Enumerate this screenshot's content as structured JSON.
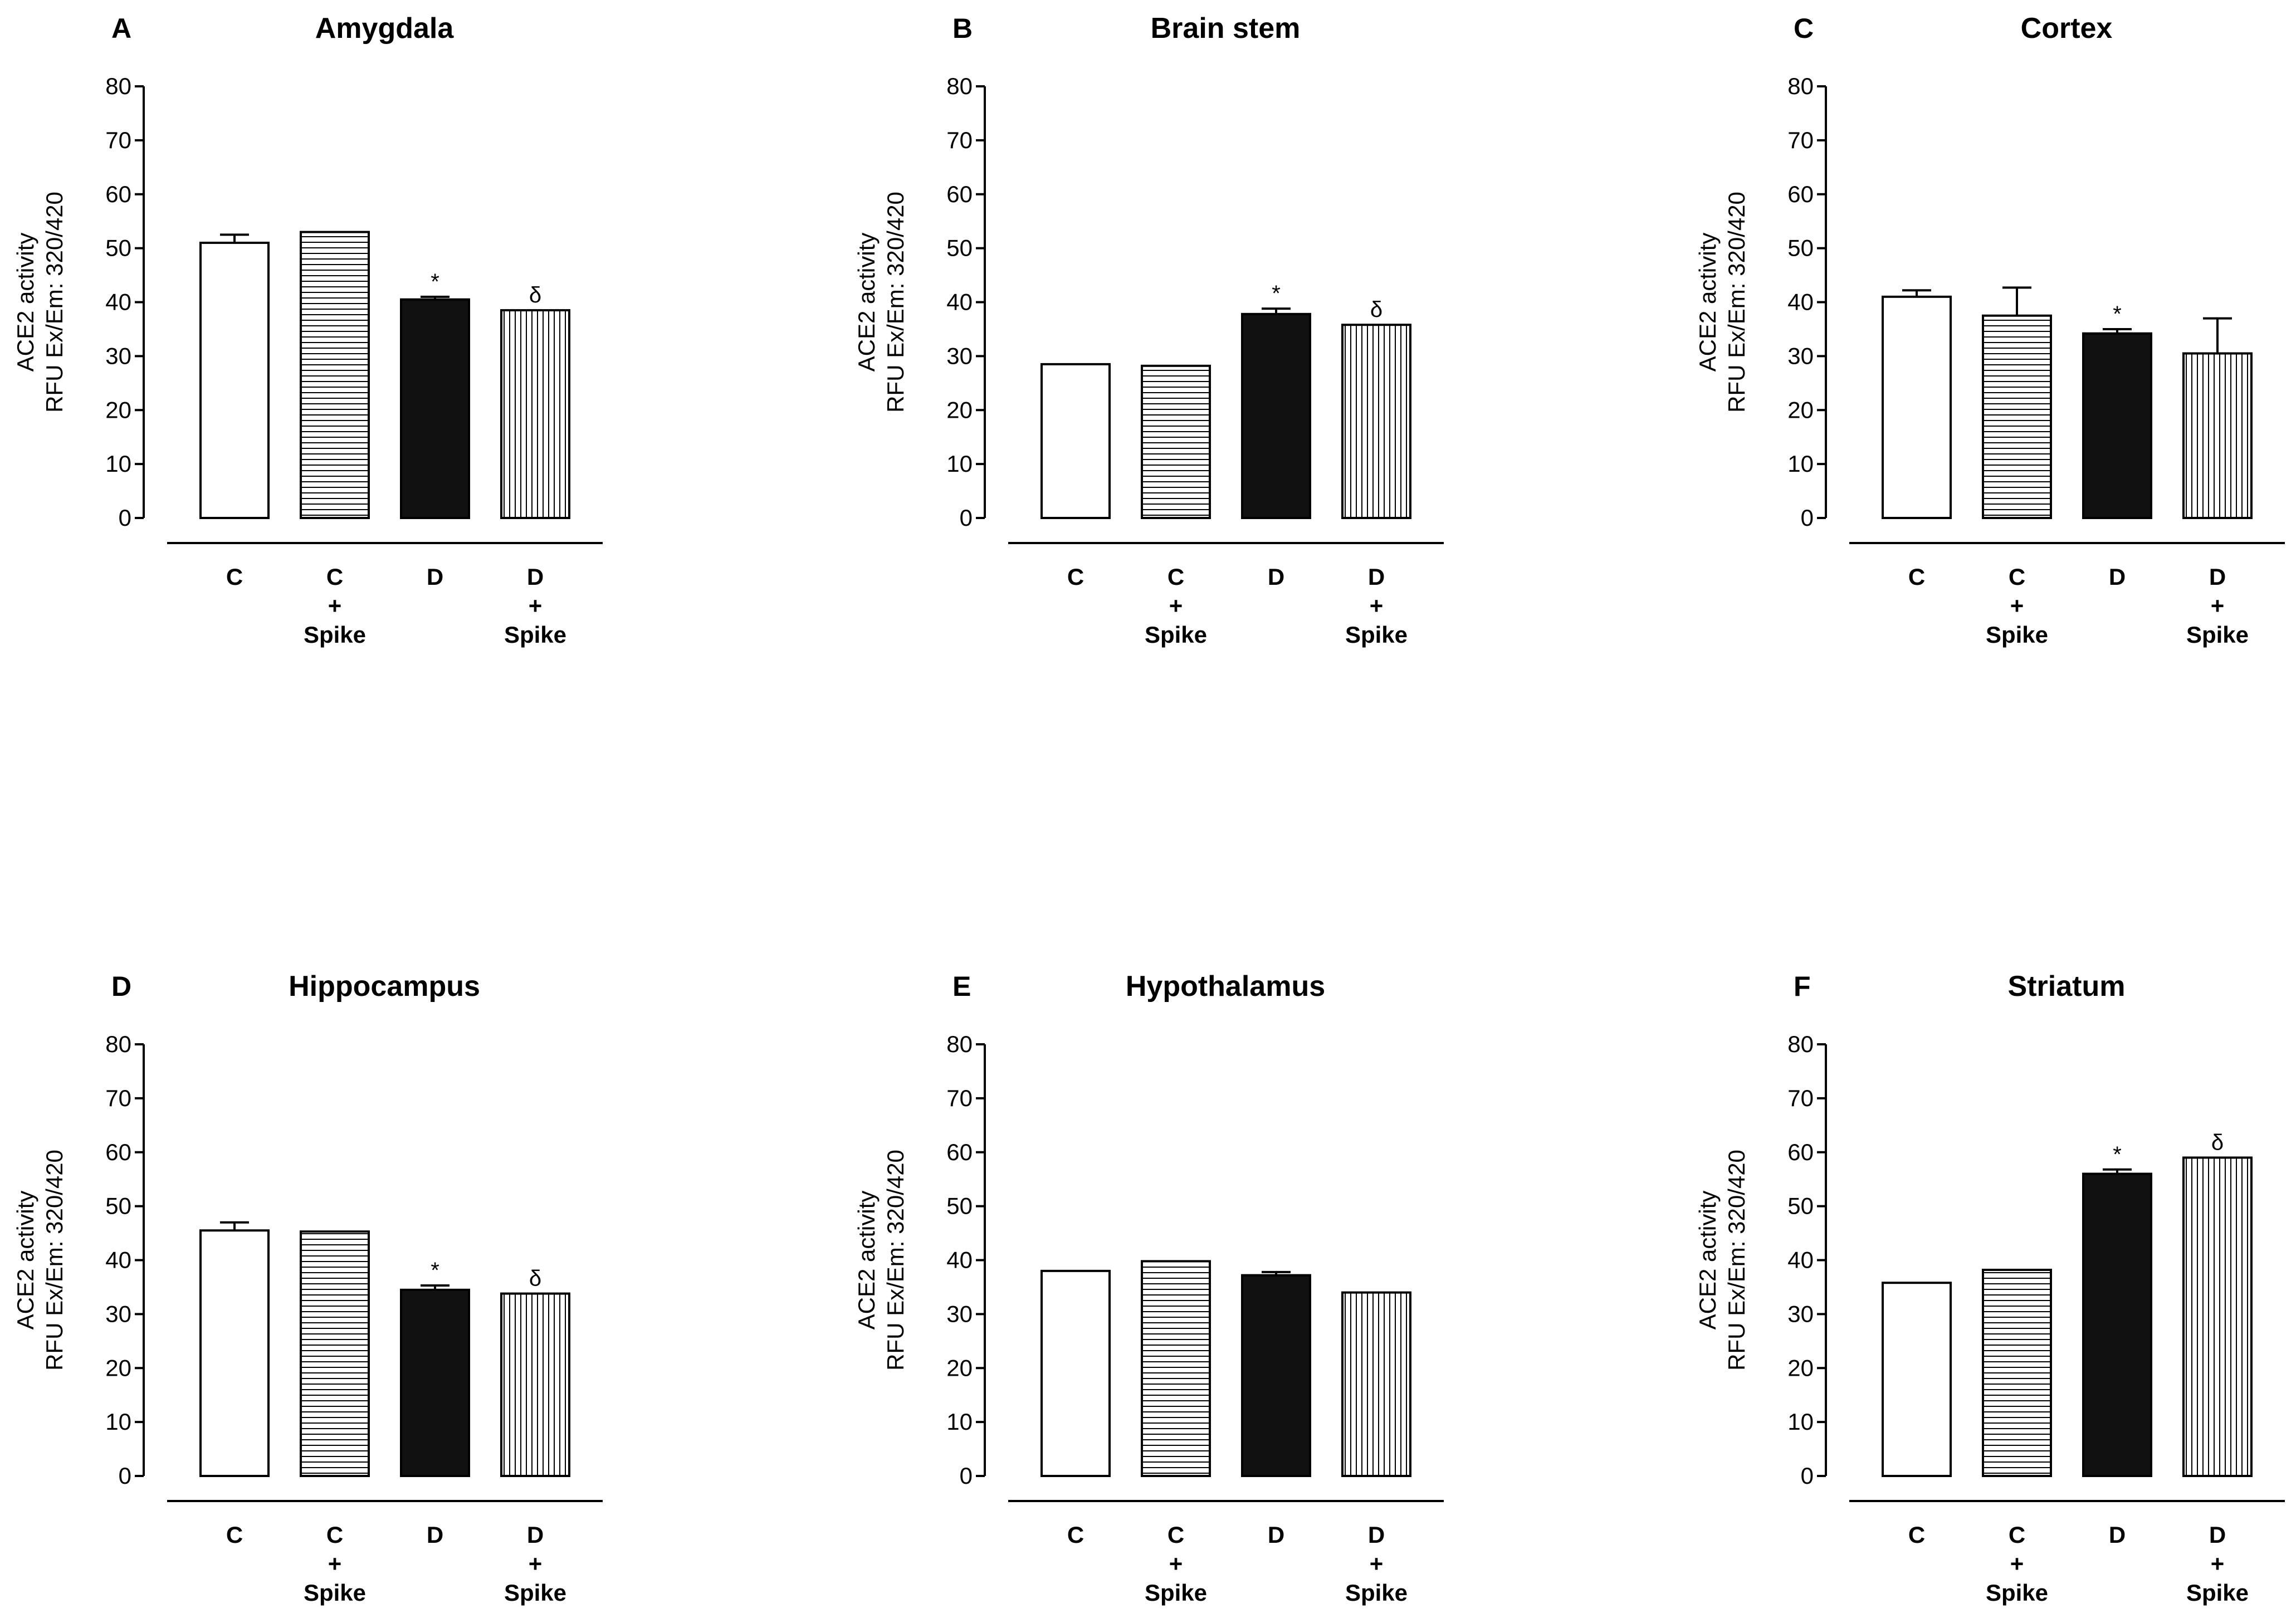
{
  "ylabel_line1": "ACE2 activity",
  "ylabel_line2": "RFU Ex/Em: 320/420",
  "categories": [
    [
      "C"
    ],
    [
      "C",
      "+",
      "Spike"
    ],
    [
      "D"
    ],
    [
      "D",
      "+",
      "Spike"
    ]
  ],
  "colors": {
    "control": "#ffffff",
    "diabetic": "#111111",
    "stroke": "#000000"
  },
  "fills": [
    "solid-white",
    "horizontal-stripes",
    "solid-black",
    "vertical-stripes"
  ],
  "chart_data": [
    {
      "type": "bar",
      "panel": "A",
      "title": "Amygdala",
      "ylim": [
        0,
        80
      ],
      "yticks": [
        0,
        10,
        20,
        30,
        40,
        50,
        60,
        70,
        80
      ],
      "values": [
        51,
        53,
        40.5,
        38.5
      ],
      "errors": [
        1.5,
        0,
        0.5,
        0
      ],
      "annotations": [
        "",
        "",
        "*",
        "δ"
      ]
    },
    {
      "type": "bar",
      "panel": "B",
      "title": "Brain stem",
      "ylim": [
        0,
        80
      ],
      "yticks": [
        0,
        10,
        20,
        30,
        40,
        50,
        60,
        70,
        80
      ],
      "values": [
        28.5,
        28.2,
        37.8,
        35.8
      ],
      "errors": [
        0,
        0,
        1,
        0
      ],
      "annotations": [
        "",
        "",
        "*",
        "δ"
      ]
    },
    {
      "type": "bar",
      "panel": "C",
      "title": "Cortex",
      "ylim": [
        0,
        80
      ],
      "yticks": [
        0,
        10,
        20,
        30,
        40,
        50,
        60,
        70,
        80
      ],
      "values": [
        41,
        37.5,
        34.2,
        30.5
      ],
      "errors": [
        1.2,
        5.2,
        0.8,
        6.5
      ],
      "annotations": [
        "",
        "",
        "*",
        ""
      ]
    },
    {
      "type": "bar",
      "panel": "D",
      "title": "Hippocampus",
      "ylim": [
        0,
        80
      ],
      "yticks": [
        0,
        10,
        20,
        30,
        40,
        50,
        60,
        70,
        80
      ],
      "values": [
        45.5,
        45.3,
        34.5,
        33.8
      ],
      "errors": [
        1.5,
        0,
        0.8,
        0
      ],
      "annotations": [
        "",
        "",
        "*",
        "δ"
      ]
    },
    {
      "type": "bar",
      "panel": "E",
      "title": "Hypothalamus",
      "ylim": [
        0,
        80
      ],
      "yticks": [
        0,
        10,
        20,
        30,
        40,
        50,
        60,
        70,
        80
      ],
      "values": [
        38,
        39.8,
        37.2,
        34
      ],
      "errors": [
        0,
        0,
        0.6,
        0
      ],
      "annotations": [
        "",
        "",
        "",
        ""
      ]
    },
    {
      "type": "bar",
      "panel": "F",
      "title": "Striatum",
      "ylim": [
        0,
        80
      ],
      "yticks": [
        0,
        10,
        20,
        30,
        40,
        50,
        60,
        70,
        80
      ],
      "values": [
        35.8,
        38.2,
        56,
        59
      ],
      "errors": [
        0,
        0,
        0.8,
        0
      ],
      "annotations": [
        "",
        "",
        "*",
        "δ"
      ]
    }
  ]
}
